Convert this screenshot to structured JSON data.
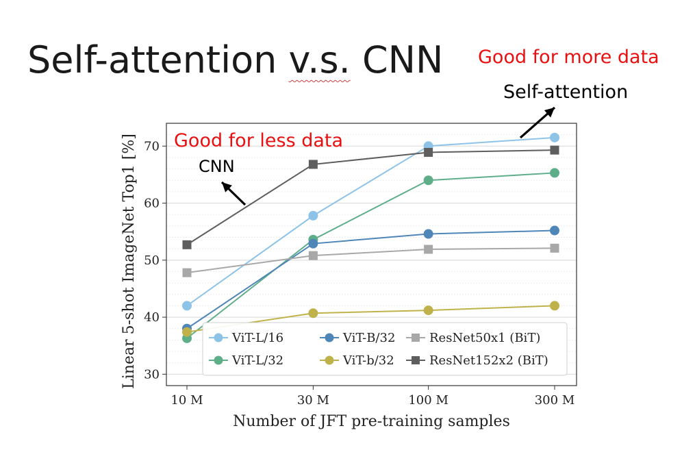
{
  "slide": {
    "title_prefix": "Self-attention ",
    "title_underlined": "v.s.",
    "title_suffix": " CNN"
  },
  "annotations": {
    "good_more": "Good for more data",
    "self_attention": "Self-attention",
    "good_less": "Good for less data",
    "cnn": "CNN"
  },
  "chart_data": {
    "type": "line",
    "xlabel": "Number of JFT pre-training samples",
    "ylabel": "Linear 5-shot ImageNet Top1 [%]",
    "x_scale": "log",
    "x": [
      9,
      30,
      90,
      300
    ],
    "x_tick_labels": [
      "10 M",
      "30 M",
      "100 M",
      "300 M"
    ],
    "ylim": [
      28,
      74
    ],
    "y_ticks": [
      30,
      40,
      50,
      60,
      70
    ],
    "grid": "horizontal",
    "legend_position": "bottom-right",
    "series": [
      {
        "name": "ViT-L/16",
        "values": [
          42.0,
          57.8,
          70.0,
          71.5
        ],
        "color": "#8ec3e8",
        "marker": "circle"
      },
      {
        "name": "ViT-L/32",
        "values": [
          36.3,
          53.6,
          64.0,
          65.3
        ],
        "color": "#5fae8a",
        "marker": "circle"
      },
      {
        "name": "ViT-B/32",
        "values": [
          38.0,
          52.9,
          54.6,
          55.2
        ],
        "color": "#4f86b8",
        "marker": "circle"
      },
      {
        "name": "ViT-b/32",
        "values": [
          37.4,
          40.7,
          41.2,
          42.0
        ],
        "color": "#c0b24a",
        "marker": "circle"
      },
      {
        "name": "ResNet50x1 (BiT)",
        "values": [
          47.8,
          50.8,
          51.9,
          52.1
        ],
        "color": "#a8a8a8",
        "marker": "square"
      },
      {
        "name": "ResNet152x2 (BiT)",
        "values": [
          52.7,
          66.8,
          68.9,
          69.3
        ],
        "color": "#5e5e5e",
        "marker": "square"
      }
    ]
  }
}
